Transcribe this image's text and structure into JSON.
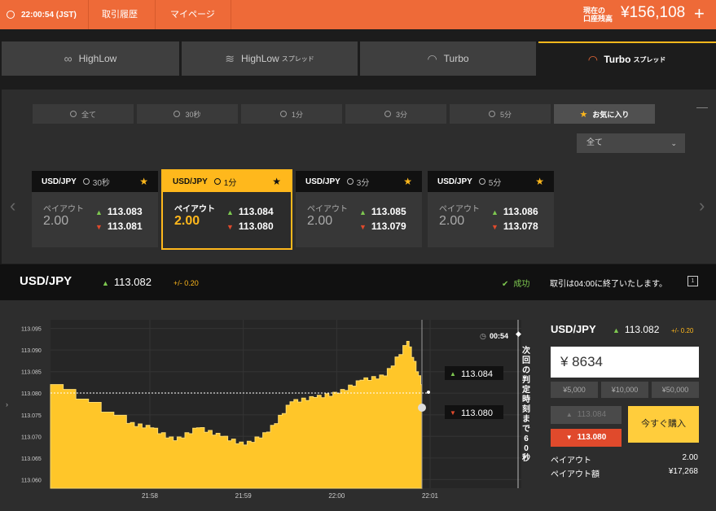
{
  "header": {
    "time": "22:00:54 (JST)",
    "trade_history": "取引履歴",
    "my_page": "マイページ",
    "balance_label_1": "現在の",
    "balance_label_2": "口座残高",
    "balance": "¥156,108",
    "plus": "+"
  },
  "mode_tabs": [
    {
      "label": "HighLow",
      "sub": ""
    },
    {
      "label": "HighLow",
      "sub": "スプレッド"
    },
    {
      "label": "Turbo",
      "sub": ""
    },
    {
      "label": "Turbo",
      "sub": "スプレッド"
    }
  ],
  "filters": [
    "全て",
    "30秒",
    "1分",
    "3分",
    "5分",
    "お気に入り"
  ],
  "filter_dropdown": "全て",
  "cards": [
    {
      "pair": "USD/JPY",
      "time": "30秒",
      "payout_label": "ペイアウト",
      "payout": "2.00",
      "high": "113.083",
      "low": "113.081"
    },
    {
      "pair": "USD/JPY",
      "time": "1分",
      "payout_label": "ペイアウト",
      "payout": "2.00",
      "high": "113.084",
      "low": "113.080"
    },
    {
      "pair": "USD/JPY",
      "time": "3分",
      "payout_label": "ペイアウト",
      "payout": "2.00",
      "high": "113.085",
      "low": "113.079"
    },
    {
      "pair": "USD/JPY",
      "time": "5分",
      "payout_label": "ペイアウト",
      "payout": "2.00",
      "high": "113.086",
      "low": "113.078"
    }
  ],
  "info": {
    "pair": "USD/JPY",
    "rate": "113.082",
    "change": "+/- 0.20",
    "status": "成功",
    "message": "取引は04:00に終了いたします。"
  },
  "chart": {
    "countdown": "00:54",
    "next_label": "次回の判定時刻まで60秒",
    "high_rate": "113.084",
    "low_rate": "113.080",
    "y_ticks": [
      "113.095",
      "113.090",
      "113.085",
      "113.080",
      "113.075",
      "113.070",
      "113.065",
      "113.060"
    ],
    "x_ticks": [
      "21:58",
      "21:59",
      "22:00",
      "22:01"
    ]
  },
  "chart_data": {
    "type": "area",
    "x": [
      "21:57:30",
      "21:57:45",
      "21:58:00",
      "21:58:15",
      "21:58:30",
      "21:58:45",
      "21:59:00",
      "21:59:15",
      "21:59:30",
      "21:59:45",
      "22:00:00",
      "22:00:15",
      "22:00:30",
      "22:00:45",
      "22:00:54"
    ],
    "values": [
      113.082,
      113.073,
      113.072,
      113.069,
      113.072,
      113.07,
      113.068,
      113.071,
      113.078,
      113.079,
      113.08,
      113.083,
      113.084,
      113.092,
      113.082
    ],
    "yticks": [
      113.095,
      113.09,
      113.085,
      113.08,
      113.075,
      113.07,
      113.065,
      113.06
    ],
    "xticks": [
      "21:58",
      "21:59",
      "22:00",
      "22:01"
    ],
    "color": "#ffc629"
  },
  "panel": {
    "pair": "USD/JPY",
    "rate": "113.082",
    "change": "+/- 0.20",
    "amount": "¥ 8634",
    "quick": [
      "¥5,000",
      "¥10,000",
      "¥50,000"
    ],
    "high_btn": "113.084",
    "low_btn": "113.080",
    "buy": "今すぐ購入",
    "payout_label": "ペイアウト",
    "payout": "2.00",
    "payout_amount_label": "ペイアウト額",
    "payout_amount": "¥17,268"
  },
  "colors": {
    "accent": "#ee6a38",
    "highlight": "#ffb81c",
    "up": "#7ec850",
    "down": "#e04a2c"
  }
}
